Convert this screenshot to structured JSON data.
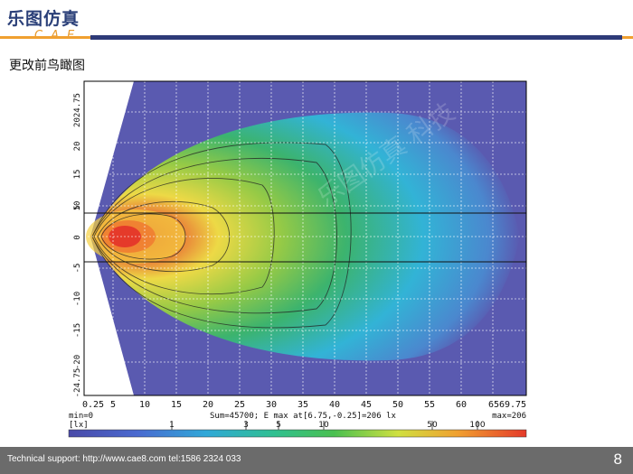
{
  "header": {
    "logo_cn": "乐图仿真",
    "logo_en": "CAE",
    "slide_title": "更改前鸟瞰图"
  },
  "plot": {
    "x_ticks": [
      "0.25",
      "5",
      "10",
      "15",
      "20",
      "25",
      "30",
      "35",
      "40",
      "45",
      "50",
      "55",
      "60",
      "65",
      "69.75"
    ],
    "y_ticks": [
      "2024.75",
      "20",
      "15",
      "10",
      "5",
      "0",
      "-5",
      "-10",
      "-15",
      "-20",
      "-24.75"
    ],
    "stats_min": "min=0",
    "stats_center": "Sum=45700; E max at[6.75,-0.25]=206 lx",
    "stats_max": "max=206",
    "unit": "[lx]",
    "colorbar_ticks": [
      "1",
      "3",
      "5",
      "10",
      "50",
      "100"
    ],
    "colors": {
      "background": "#5a5ab0",
      "hot": "#e53a2a",
      "warm": "#f5e040",
      "mid": "#3ab86a",
      "cool": "#30b8d8"
    }
  },
  "watermark": "乐图仿真 科技",
  "footer": {
    "support": "Technical support: http://www.cae8.com  tel:1586 2324 033",
    "page": "8"
  }
}
